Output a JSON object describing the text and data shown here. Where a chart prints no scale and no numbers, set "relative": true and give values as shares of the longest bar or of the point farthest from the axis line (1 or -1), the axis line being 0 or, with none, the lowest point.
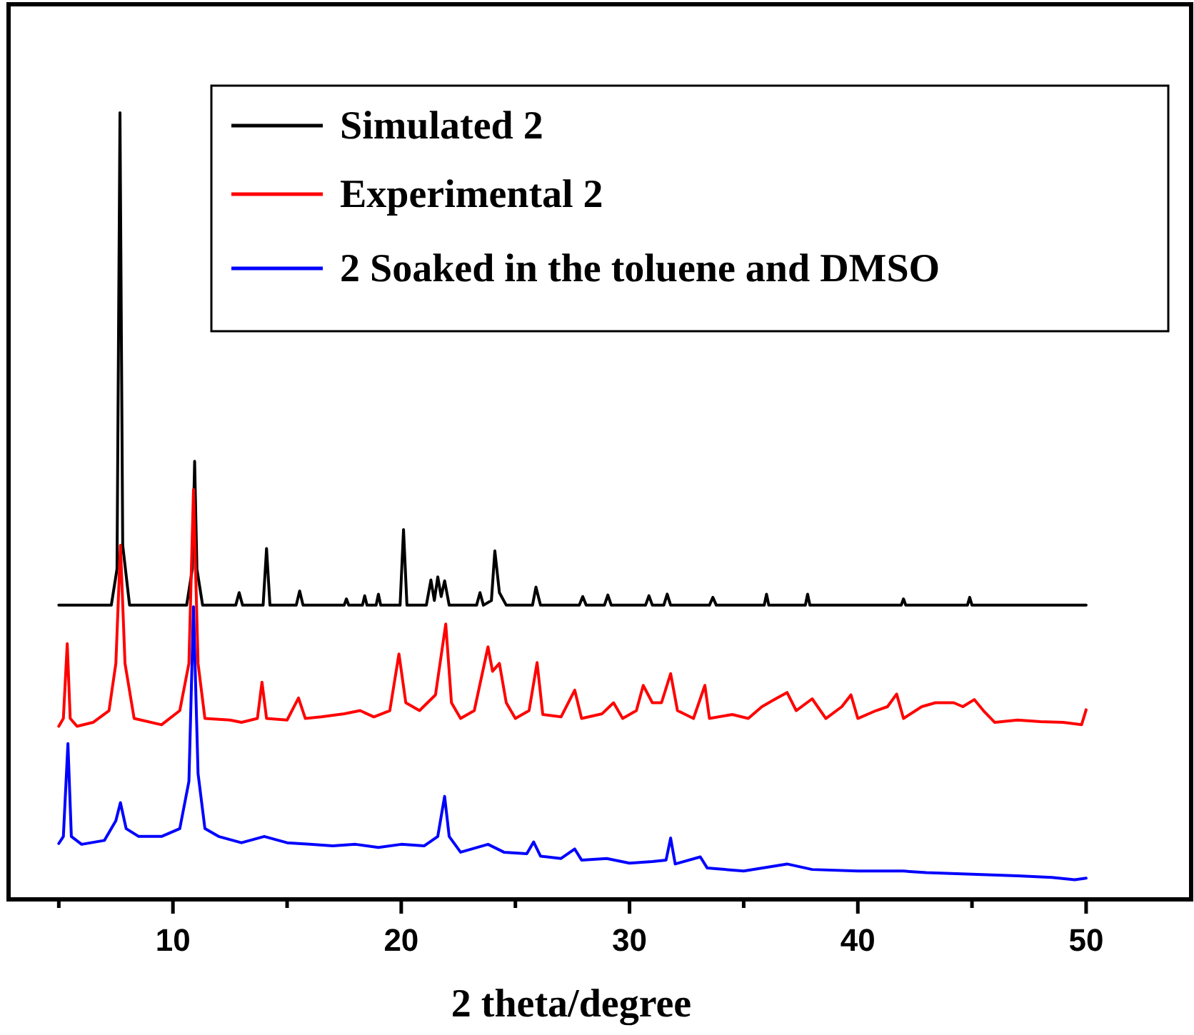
{
  "chart_data": {
    "type": "line",
    "xlabel": "2 theta/degree",
    "relative": true,
    "legend": "top right",
    "xlim": [
      2.8,
      54.6
    ],
    "xticks": [
      {
        "value": 5,
        "label": null
      },
      10,
      {
        "value": 15,
        "label": null
      },
      20,
      {
        "value": 25,
        "label": null
      },
      30,
      {
        "value": 35,
        "label": null
      },
      40,
      {
        "value": 45,
        "label": null
      },
      50
    ],
    "series": [
      {
        "name": "Simulated 2",
        "color": "#000000",
        "x": [
          5,
          7.3,
          7.55,
          7.68,
          7.8,
          8.1,
          10.6,
          10.85,
          10.95,
          11.05,
          11.3,
          12.75,
          12.9,
          13.05,
          13.95,
          14.1,
          14.25,
          15.4,
          15.55,
          15.7,
          17.5,
          17.6,
          17.7,
          18.3,
          18.4,
          18.5,
          18.9,
          19.0,
          19.1,
          19.95,
          20.1,
          20.25,
          21.1,
          21.3,
          21.45,
          21.6,
          21.75,
          21.9,
          22.1,
          23.3,
          23.45,
          23.6,
          23.95,
          24.1,
          24.3,
          24.6,
          25.75,
          25.9,
          26.1,
          27.8,
          27.95,
          28.1,
          28.9,
          29.05,
          29.2,
          30.7,
          30.85,
          31.0,
          31.5,
          31.65,
          31.8,
          33.5,
          33.65,
          33.8,
          35.9,
          36.0,
          36.1,
          37.7,
          37.8,
          37.9,
          41.9,
          42.0,
          42.1,
          44.8,
          44.9,
          45.0,
          50
        ],
        "values": [
          0.374,
          0.374,
          0.42,
          1.0,
          0.45,
          0.374,
          0.374,
          0.42,
          0.557,
          0.42,
          0.374,
          0.374,
          0.39,
          0.374,
          0.374,
          0.446,
          0.374,
          0.374,
          0.392,
          0.374,
          0.374,
          0.382,
          0.374,
          0.374,
          0.386,
          0.374,
          0.374,
          0.388,
          0.374,
          0.374,
          0.47,
          0.374,
          0.374,
          0.406,
          0.38,
          0.41,
          0.385,
          0.405,
          0.374,
          0.374,
          0.39,
          0.374,
          0.38,
          0.443,
          0.39,
          0.374,
          0.374,
          0.397,
          0.374,
          0.374,
          0.385,
          0.374,
          0.374,
          0.387,
          0.374,
          0.374,
          0.386,
          0.374,
          0.374,
          0.388,
          0.374,
          0.374,
          0.384,
          0.374,
          0.374,
          0.388,
          0.374,
          0.374,
          0.388,
          0.374,
          0.374,
          0.382,
          0.374,
          0.374,
          0.384,
          0.374,
          0.374
        ]
      },
      {
        "name": "Experimental 2",
        "color": "#ff0000",
        "x": [
          5,
          5.2,
          5.37,
          5.5,
          5.8,
          6.5,
          7.2,
          7.5,
          7.7,
          7.9,
          8.3,
          9.5,
          10.3,
          10.7,
          10.9,
          11.1,
          11.4,
          12.5,
          13.0,
          13.7,
          13.9,
          14.1,
          15.0,
          15.5,
          15.8,
          16.5,
          17.5,
          18.2,
          18.8,
          19.5,
          19.9,
          20.2,
          20.8,
          21.5,
          21.95,
          22.2,
          22.6,
          23.2,
          23.8,
          24.0,
          24.3,
          24.6,
          25.0,
          25.6,
          25.95,
          26.2,
          27.0,
          27.6,
          27.9,
          28.8,
          29.3,
          29.7,
          30.3,
          30.6,
          31.0,
          31.4,
          31.8,
          32.1,
          32.8,
          33.3,
          33.5,
          34.5,
          35.2,
          35.8,
          36.4,
          36.9,
          37.3,
          38.0,
          38.6,
          39.3,
          39.7,
          40.0,
          40.8,
          41.3,
          41.7,
          42.0,
          42.8,
          43.4,
          44.2,
          44.6,
          45.1,
          45.5,
          46.0,
          47.0,
          48.0,
          49.0,
          49.8,
          50
        ],
        "values": [
          0.22,
          0.23,
          0.325,
          0.23,
          0.22,
          0.225,
          0.24,
          0.3,
          0.45,
          0.3,
          0.23,
          0.222,
          0.24,
          0.3,
          0.521,
          0.3,
          0.23,
          0.228,
          0.225,
          0.23,
          0.276,
          0.23,
          0.228,
          0.256,
          0.23,
          0.232,
          0.236,
          0.24,
          0.232,
          0.24,
          0.312,
          0.25,
          0.24,
          0.26,
          0.35,
          0.25,
          0.23,
          0.24,
          0.321,
          0.29,
          0.3,
          0.25,
          0.23,
          0.24,
          0.301,
          0.235,
          0.232,
          0.266,
          0.23,
          0.236,
          0.25,
          0.23,
          0.24,
          0.272,
          0.25,
          0.25,
          0.287,
          0.24,
          0.23,
          0.272,
          0.23,
          0.235,
          0.23,
          0.245,
          0.255,
          0.263,
          0.24,
          0.255,
          0.23,
          0.245,
          0.26,
          0.23,
          0.24,
          0.245,
          0.261,
          0.23,
          0.245,
          0.25,
          0.25,
          0.245,
          0.254,
          0.24,
          0.225,
          0.228,
          0.226,
          0.225,
          0.222,
          0.241
        ]
      },
      {
        "name": "2 Soaked in the toluene and DMSO",
        "color": "#0000ff",
        "x": [
          5,
          5.2,
          5.4,
          5.55,
          6.0,
          7.0,
          7.5,
          7.7,
          7.95,
          8.5,
          9.5,
          10.3,
          10.7,
          10.9,
          11.1,
          11.4,
          12.0,
          13.0,
          14.0,
          15.0,
          16.0,
          17.0,
          18.0,
          19.0,
          20.0,
          21.0,
          21.6,
          21.9,
          22.1,
          22.6,
          23.8,
          24.5,
          25.5,
          25.8,
          26.1,
          27.0,
          27.6,
          27.9,
          29.0,
          30.0,
          31.0,
          31.6,
          31.8,
          32.0,
          33.1,
          33.4,
          35.0,
          36.9,
          38.0,
          40.0,
          42.0,
          43.0,
          45.0,
          47.0,
          48.5,
          49.5,
          50
        ],
        "values": [
          0.071,
          0.08,
          0.198,
          0.08,
          0.07,
          0.075,
          0.1,
          0.123,
          0.09,
          0.08,
          0.08,
          0.09,
          0.15,
          0.372,
          0.16,
          0.09,
          0.08,
          0.072,
          0.08,
          0.072,
          0.07,
          0.068,
          0.07,
          0.066,
          0.07,
          0.068,
          0.08,
          0.131,
          0.08,
          0.06,
          0.07,
          0.06,
          0.058,
          0.073,
          0.055,
          0.052,
          0.064,
          0.05,
          0.052,
          0.046,
          0.048,
          0.05,
          0.078,
          0.045,
          0.054,
          0.04,
          0.036,
          0.045,
          0.038,
          0.036,
          0.036,
          0.034,
          0.032,
          0.03,
          0.028,
          0.025,
          0.027
        ]
      }
    ]
  }
}
